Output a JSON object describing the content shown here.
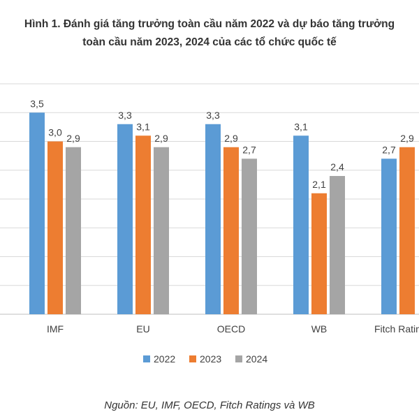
{
  "chart_data": {
    "type": "bar",
    "title_lines": [
      "Hình 1. Đánh giá tăng trưởng toàn cầu năm 2022 và dự báo tăng trưởng",
      "toàn cầu năm 2023, 2024 của các tổ chức quốc tế"
    ],
    "categories": [
      "IMF",
      "EU",
      "OECD",
      "WB",
      "Fitch Ratings"
    ],
    "series": [
      {
        "name": "2022",
        "color": "#5b9bd5",
        "values": [
          3.5,
          3.3,
          3.3,
          3.1,
          2.7
        ],
        "labels": [
          "3,5",
          "3,3",
          "3,3",
          "3,1",
          "2,7"
        ]
      },
      {
        "name": "2023",
        "color": "#ed7d31",
        "values": [
          3.0,
          3.1,
          2.9,
          2.1,
          2.9
        ],
        "labels": [
          "3,0",
          "3,1",
          "2,9",
          "2,1",
          "2,9"
        ]
      },
      {
        "name": "2024",
        "color": "#a5a5a5",
        "values": [
          2.9,
          2.9,
          2.7,
          2.4,
          null
        ],
        "labels": [
          "2,9",
          "2,9",
          "2,7",
          "2,4",
          ""
        ]
      }
    ],
    "ylim": [
      0,
      4
    ],
    "grid": true,
    "legend": "bottom"
  },
  "source_note": "Nguồn: EU, IMF, OECD, Fitch Ratings và WB"
}
